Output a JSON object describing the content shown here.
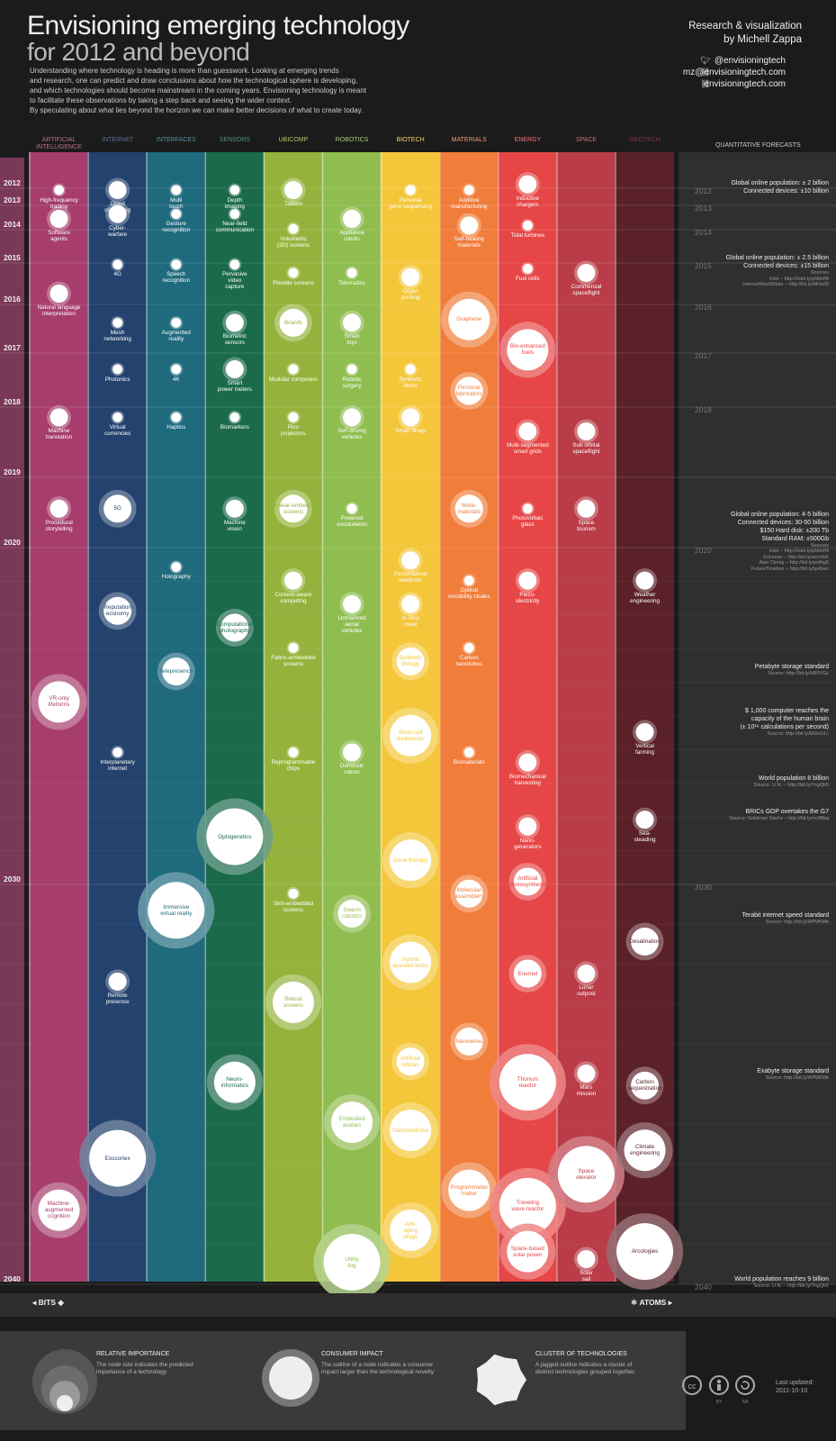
{
  "header": {
    "title_line1": "Envisioning emerging technology",
    "title_line2": "for 2012 and beyond",
    "intro": [
      "Understanding where technology is heading is more than guesswork. Looking at emerging trends",
      "and research, one can predict and draw conclusions about how the technological sphere is developing,",
      "and which technologies should become mainstream in the coming years. Envisioning technology is meant",
      "to facilitate these observations by taking a step back and seeing the wider context.",
      "By speculating about what lies beyond the horizon we can make better decisions of what to create today."
    ],
    "credit_line1": "Research & visualization",
    "credit_line2": "by Michell Zappa",
    "twitter": "@envisioningtech",
    "email": "mz@envisioningtech.com",
    "website": "envisioningtech.com"
  },
  "quant_header": "QUANTITATIVE FORECASTS",
  "chart_data": {
    "type": "scatter",
    "y_axis": "year",
    "ylim": [
      2012,
      2040
    ],
    "categories": [
      {
        "name": "ARTIFICIAL INTELLIGENCE",
        "color": "#a63d6c"
      },
      {
        "name": "INTERNET",
        "color": "#23426d"
      },
      {
        "name": "INTERFACES",
        "color": "#1f6a7d"
      },
      {
        "name": "SENSORS",
        "color": "#1c6a4c"
      },
      {
        "name": "UBICOMP",
        "color": "#95b33c"
      },
      {
        "name": "ROBOTICS",
        "color": "#8fbd50"
      },
      {
        "name": "BIOTECH",
        "color": "#f4c63a"
      },
      {
        "name": "MATERIALS",
        "color": "#f17d3b"
      },
      {
        "name": "ENERGY",
        "color": "#e64646"
      },
      {
        "name": "SPACE",
        "color": "#b93c48"
      },
      {
        "name": "GEOTECH",
        "color": "#5a2128"
      }
    ],
    "year_ticks": [
      {
        "label": "2012",
        "year": 2012
      },
      {
        "label": "2013",
        "year": 2013
      },
      {
        "label": "2014",
        "year": 2014
      },
      {
        "label": "2015",
        "year": 2015
      },
      {
        "label": "2016",
        "year": 2016
      },
      {
        "label": "2017",
        "year": 2017
      },
      {
        "label": "2018",
        "year": 2018
      },
      {
        "label": "2019",
        "year": 2019
      },
      {
        "label": "2020",
        "year": 2020
      },
      {
        "label": "2030",
        "year": 2030
      },
      {
        "label": "2040",
        "year": 2040
      }
    ],
    "technologies": [
      {
        "col": 0,
        "year": 2012,
        "size": 1,
        "label": "High-frequency|trading"
      },
      {
        "col": 0,
        "year": 2014,
        "size": 2,
        "label": "Software|agents"
      },
      {
        "col": 0,
        "year": 2016,
        "size": 2,
        "label": "Natural language|interpretation"
      },
      {
        "col": 0,
        "year": 2018.3,
        "size": 2,
        "label": "Machine|translation"
      },
      {
        "col": 0,
        "year": 2019.6,
        "size": 2,
        "label": "Procedural|storytelling"
      },
      {
        "col": 0,
        "year": 2025,
        "size": 4,
        "label": "VR-only|lifeforms"
      },
      {
        "col": 0,
        "year": 2038.5,
        "size": 4,
        "label": "Machine-|augmented|cognition"
      },
      {
        "col": 1,
        "year": 2012,
        "size": 2,
        "label": "Cloud|computing"
      },
      {
        "col": 1,
        "year": 2013.8,
        "size": 2,
        "label": "Cyber-|warfare"
      },
      {
        "col": 1,
        "year": 2015.3,
        "size": 1,
        "label": "4G"
      },
      {
        "col": 1,
        "year": 2016.6,
        "size": 1,
        "label": "Mesh|networking"
      },
      {
        "col": 1,
        "year": 2017.5,
        "size": 1,
        "label": "Photonics"
      },
      {
        "col": 1,
        "year": 2018.3,
        "size": 1,
        "label": "Virtual|currencies"
      },
      {
        "col": 1,
        "year": 2019.6,
        "size": 3,
        "label": "5G"
      },
      {
        "col": 1,
        "year": 2022.2,
        "size": 3,
        "label": "Reputation|economy"
      },
      {
        "col": 1,
        "year": 2026.4,
        "size": 1,
        "label": "Interplanetary|internet"
      },
      {
        "col": 1,
        "year": 2032.7,
        "size": 2,
        "label": "Remote|presence"
      },
      {
        "col": 1,
        "year": 2037.2,
        "size": 5,
        "label": "Exocortex"
      },
      {
        "col": 2,
        "year": 2012,
        "size": 1,
        "label": "Multi|touch"
      },
      {
        "col": 2,
        "year": 2013.8,
        "size": 1,
        "label": "Gesture|recognition"
      },
      {
        "col": 2,
        "year": 2015.3,
        "size": 1,
        "label": "Speech|recognition"
      },
      {
        "col": 2,
        "year": 2016.6,
        "size": 1,
        "label": "Augmented|reality"
      },
      {
        "col": 2,
        "year": 2017.5,
        "size": 1,
        "label": "4K"
      },
      {
        "col": 2,
        "year": 2018.3,
        "size": 1,
        "label": "Haptics"
      },
      {
        "col": 2,
        "year": 2020.9,
        "size": 1,
        "label": "Holography"
      },
      {
        "col": 2,
        "year": 2024,
        "size": 3,
        "label": "Telepresence"
      },
      {
        "col": 2,
        "year": 2031,
        "size": 5,
        "label": "Immersive|virtual reality"
      },
      {
        "col": 3,
        "year": 2012,
        "size": 1,
        "label": "Depth|imaging"
      },
      {
        "col": 3,
        "year": 2013.8,
        "size": 1,
        "label": "Near-field|communication"
      },
      {
        "col": 3,
        "year": 2015.3,
        "size": 1,
        "label": "Pervasive|video|capture"
      },
      {
        "col": 3,
        "year": 2016.6,
        "size": 2,
        "label": "Biometric|sensors"
      },
      {
        "col": 3,
        "year": 2017.5,
        "size": 2,
        "label": "Smart|power meters"
      },
      {
        "col": 3,
        "year": 2018.3,
        "size": 1,
        "label": "Biomarkers"
      },
      {
        "col": 3,
        "year": 2019.6,
        "size": 2,
        "label": "Machine|vision"
      },
      {
        "col": 3,
        "year": 2022.7,
        "size": 3,
        "label": "Computational|photography"
      },
      {
        "col": 3,
        "year": 2029,
        "size": 5,
        "label": "Optogenetics"
      },
      {
        "col": 3,
        "year": 2035.3,
        "size": 4,
        "label": "Neuro-|informatics"
      },
      {
        "col": 4,
        "year": 2012,
        "size": 2,
        "label": "Tablets"
      },
      {
        "col": 4,
        "year": 2014.3,
        "size": 1,
        "label": "Volumetric|(3D) screens"
      },
      {
        "col": 4,
        "year": 2015.5,
        "size": 1,
        "label": "Flexible screens"
      },
      {
        "col": 4,
        "year": 2016.6,
        "size": 3,
        "label": "Boards"
      },
      {
        "col": 4,
        "year": 2017.5,
        "size": 1,
        "label": "Modular computers"
      },
      {
        "col": 4,
        "year": 2018.3,
        "size": 1,
        "label": "Pico|projectors"
      },
      {
        "col": 4,
        "year": 2019.6,
        "size": 3,
        "label": "Eyewear-embedded|screens"
      },
      {
        "col": 4,
        "year": 2021.3,
        "size": 2,
        "label": "Context-aware|computing"
      },
      {
        "col": 4,
        "year": 2023.3,
        "size": 1,
        "label": "Fabric-embedded|screens"
      },
      {
        "col": 4,
        "year": 2026.4,
        "size": 1,
        "label": "Reprogrammable|chips"
      },
      {
        "col": 4,
        "year": 2030.5,
        "size": 1,
        "label": "Skin-embedded|screens"
      },
      {
        "col": 4,
        "year": 2033.3,
        "size": 4,
        "label": "Retinal|screens"
      },
      {
        "col": 5,
        "year": 2014,
        "size": 2,
        "label": "Appliance|robots"
      },
      {
        "col": 5,
        "year": 2015.5,
        "size": 1,
        "label": "Telematics"
      },
      {
        "col": 5,
        "year": 2016.6,
        "size": 2,
        "label": "Smart|toys"
      },
      {
        "col": 5,
        "year": 2017.5,
        "size": 1,
        "label": "Robotic|surgery"
      },
      {
        "col": 5,
        "year": 2018.3,
        "size": 2,
        "label": "Self-driving|vehicles"
      },
      {
        "col": 5,
        "year": 2019.6,
        "size": 1,
        "label": "Powered|exoskeleton"
      },
      {
        "col": 5,
        "year": 2022,
        "size": 2,
        "label": "Unmanned|aerial|vehicles"
      },
      {
        "col": 5,
        "year": 2026.4,
        "size": 2,
        "label": "Domestic|robots"
      },
      {
        "col": 5,
        "year": 2031,
        "size": 3,
        "label": "Swarm|robotics"
      },
      {
        "col": 5,
        "year": 2036.3,
        "size": 4,
        "label": "Embodied|avatars"
      },
      {
        "col": 5,
        "year": 2039.8,
        "size": 5,
        "label": "Utility|fog"
      },
      {
        "col": 6,
        "year": 2012,
        "size": 1,
        "label": "Personal|gene sequencing"
      },
      {
        "col": 6,
        "year": 2015.6,
        "size": 2,
        "label": "Organ|printing"
      },
      {
        "col": 6,
        "year": 2017.5,
        "size": 1,
        "label": "Synthetic|blood"
      },
      {
        "col": 6,
        "year": 2018.3,
        "size": 2,
        "label": "Smart drugs"
      },
      {
        "col": 6,
        "year": 2020.7,
        "size": 2,
        "label": "Personalized|medicine"
      },
      {
        "col": 6,
        "year": 2022,
        "size": 2,
        "label": "In vitro|meat"
      },
      {
        "col": 6,
        "year": 2023.7,
        "size": 3,
        "label": "Synthetic|biology"
      },
      {
        "col": 6,
        "year": 2026,
        "size": 4,
        "label": "Stem-cell|treatments"
      },
      {
        "col": 6,
        "year": 2029.7,
        "size": 4,
        "label": "Gene therapy"
      },
      {
        "col": 6,
        "year": 2032.3,
        "size": 4,
        "label": "Hybrid|assisted limbs"
      },
      {
        "col": 6,
        "year": 2034.7,
        "size": 3,
        "label": "Artificial|retinas"
      },
      {
        "col": 6,
        "year": 2036.5,
        "size": 4,
        "label": "Nanomedicine"
      },
      {
        "col": 6,
        "year": 2039,
        "size": 4,
        "label": "Anti-|aging|drugs"
      },
      {
        "col": 7,
        "year": 2012,
        "size": 1,
        "label": "Additive|manufacturing"
      },
      {
        "col": 7,
        "year": 2014.2,
        "size": 2,
        "label": "Self-healing|materials"
      },
      {
        "col": 7,
        "year": 2016.6,
        "size": 4,
        "label": "Graphene"
      },
      {
        "col": 7,
        "year": 2017.9,
        "size": 3,
        "label": "Personal|fabricators"
      },
      {
        "col": 7,
        "year": 2019.6,
        "size": 3,
        "label": "Meta-|materials"
      },
      {
        "col": 7,
        "year": 2021.3,
        "size": 1,
        "label": "Optical|invisibility cloaks"
      },
      {
        "col": 7,
        "year": 2023.3,
        "size": 1,
        "label": "Carbon|nanotubes"
      },
      {
        "col": 7,
        "year": 2026.4,
        "size": 1,
        "label": "Biomaterials"
      },
      {
        "col": 7,
        "year": 2030.5,
        "size": 3,
        "label": "Molecular|assemblers"
      },
      {
        "col": 7,
        "year": 2034.2,
        "size": 3,
        "label": "Nanowires"
      },
      {
        "col": 7,
        "year": 2038,
        "size": 4,
        "label": "Programmable|matter"
      },
      {
        "col": 8,
        "year": 2012.4,
        "size": 2,
        "label": "Inductive|chargers"
      },
      {
        "col": 8,
        "year": 2014.2,
        "size": 1,
        "label": "Tidal turbines"
      },
      {
        "col": 8,
        "year": 2015.4,
        "size": 1,
        "label": "Fuel cells"
      },
      {
        "col": 8,
        "year": 2017.2,
        "size": 4,
        "label": "Bio-enhanced|fuels"
      },
      {
        "col": 8,
        "year": 2018.5,
        "size": 2,
        "label": "Multi-segmented|smart grids"
      },
      {
        "col": 8,
        "year": 2019.6,
        "size": 1,
        "label": "Photovoltaic|glass"
      },
      {
        "col": 8,
        "year": 2021.3,
        "size": 2,
        "label": "Piezo-|electricity"
      },
      {
        "col": 8,
        "year": 2026.7,
        "size": 2,
        "label": "Biomechanical|harvesting"
      },
      {
        "col": 8,
        "year": 2028.6,
        "size": 2,
        "label": "Nano-|generators"
      },
      {
        "col": 8,
        "year": 2030.2,
        "size": 3,
        "label": "Artificial|photosynthesis"
      },
      {
        "col": 8,
        "year": 2032.5,
        "size": 3,
        "label": "Enernet"
      },
      {
        "col": 8,
        "year": 2035.3,
        "size": 5,
        "label": "Thorium|reactor"
      },
      {
        "col": 8,
        "year": 2038.4,
        "size": 5,
        "label": "Traveling|wave reactor"
      },
      {
        "col": 8,
        "year": 2040,
        "size": 4,
        "label": "Space-based|solar power"
      },
      {
        "col": 9,
        "year": 2015.5,
        "size": 2,
        "label": "Commercial|spaceflight"
      },
      {
        "col": 9,
        "year": 2018.5,
        "size": 2,
        "label": "Sub orbital|spaceflight"
      },
      {
        "col": 9,
        "year": 2019.6,
        "size": 2,
        "label": "Space|tourism"
      },
      {
        "col": 9,
        "year": 2032.5,
        "size": 2,
        "label": "Lunar|outpost"
      },
      {
        "col": 9,
        "year": 2035,
        "size": 2,
        "label": "Mars|mission"
      },
      {
        "col": 9,
        "year": 2037.6,
        "size": 5,
        "label": "Space|elevator"
      },
      {
        "col": 9,
        "year": 2040,
        "size": 2,
        "label": "Solar|sail"
      },
      {
        "col": 10,
        "year": 2021.3,
        "size": 2,
        "label": "Weather|engineering"
      },
      {
        "col": 10,
        "year": 2025.8,
        "size": 2,
        "label": "Vertical|farming"
      },
      {
        "col": 10,
        "year": 2028.4,
        "size": 2,
        "label": "Sea-|steading"
      },
      {
        "col": 10,
        "year": 2031.7,
        "size": 3,
        "label": "Desalination"
      },
      {
        "col": 10,
        "year": 2035.3,
        "size": 3,
        "label": "Carbon|sequestration"
      },
      {
        "col": 10,
        "year": 2037,
        "size": 4,
        "label": "Climate|engineering"
      },
      {
        "col": 10,
        "year": 2040,
        "size": 5,
        "label": "Arcologies"
      }
    ],
    "right_year_ticks": [
      {
        "label": "2012",
        "year": 2012
      },
      {
        "label": "2013",
        "year": 2013
      },
      {
        "label": "2014",
        "year": 2014
      },
      {
        "label": "2015",
        "year": 2015
      },
      {
        "label": "2016",
        "year": 2016
      },
      {
        "label": "2017",
        "year": 2017
      },
      {
        "label": "2018",
        "year": 2018
      },
      {
        "label": "2020",
        "year": 2020
      },
      {
        "label": "2030",
        "year": 2030
      },
      {
        "label": "2040",
        "year": 2040
      }
    ]
  },
  "forecasts": [
    {
      "year": 2012,
      "lines": [
        "Global online population: ± 2 billion",
        "Connected devices: ±10 billion"
      ],
      "sources": []
    },
    {
      "year": 2015,
      "lines": [
        "Global online population: ± 2.5 billion",
        "Connected devices: ±15 billion"
      ],
      "sources": [
        "Sources",
        "Intel – http://intel.ly/pNbHf4",
        "InternetWorldStats – http://bit.ly/AKts09"
      ]
    },
    {
      "year": 2019.6,
      "lines": [
        "Global online population: 4-5 billion",
        "Connected devices: 30-50 billion",
        "$150 Hard disk: ±200 Tb",
        "Standard RAM: ±500Gb"
      ],
      "sources": [
        "Sources",
        "Intel – http://intel.ly/pNbHf4",
        "Ericsson – http://bit.ly/aevVeK",
        "Alan Cinnig – http://bit.ly/pofhg6",
        "FutureTimeline – http://bit.ly/tp4ban"
      ]
    },
    {
      "year": 2023.7,
      "lines": [
        "Petabyte storage standard"
      ],
      "sources": [
        "Source: http://bit.ly/H89YGc"
      ]
    },
    {
      "year": 2025,
      "lines": [
        "$ 1,000 computer reaches the",
        "capacity of the human brain",
        "(± 10¹⁶ calculations per second)"
      ],
      "sources": [
        "Source: http://bit.ly/EMoG1c"
      ]
    },
    {
      "year": 2027,
      "lines": [
        "World population 8 billion"
      ],
      "sources": [
        "Source: U.N. – http://bit.ly/7ngQk5"
      ]
    },
    {
      "year": 2028,
      "lines": [
        "BRICs GDP overtakes the G7"
      ],
      "sources": [
        "Source: Goldman Sachs – http://bit.ly/nc9Bkg"
      ]
    },
    {
      "year": 2030.9,
      "lines": [
        "Terabit internet speed standard"
      ],
      "sources": [
        "Source: http://bit.ly/APMKMb"
      ]
    },
    {
      "year": 2034.8,
      "lines": [
        "Exabyte storage standard"
      ],
      "sources": [
        "Source: http://bit.ly/APMKMb"
      ]
    },
    {
      "year": 2040.4,
      "lines": [
        "World population reaches 9 billion"
      ],
      "sources": [
        "Source: U.N. – http://bit.ly/7ngQk5"
      ]
    }
  ],
  "footer": {
    "bits_label": "BITS",
    "atoms_label": "ATOMS",
    "legend": [
      {
        "title": "RELATIVE IMPORTANCE",
        "desc": [
          "The node size indicates the predicted",
          "importance of a technology"
        ]
      },
      {
        "title": "CONSUMER IMPACT",
        "desc": [
          "The outline of a node indicates a consumer",
          "impact larger than the technological novelty"
        ]
      },
      {
        "title": "CLUSTER OF TECHNOLOGIES",
        "desc": [
          "A jagged outline indicates a cluster of",
          "distinct technologies grouped together."
        ]
      }
    ],
    "license_icons": [
      "cc-icon",
      "by-icon",
      "sa-icon"
    ],
    "license_labels": [
      "BY",
      "SA"
    ],
    "last_updated_label": "Last updated:",
    "last_updated_date": "2011-10-10"
  }
}
